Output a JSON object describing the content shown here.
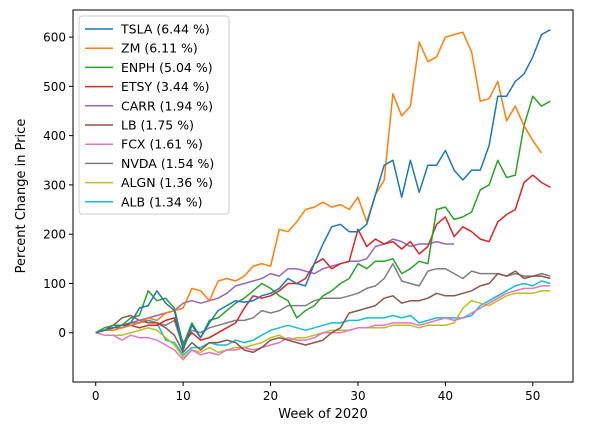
{
  "chart_data": {
    "type": "line",
    "title": "",
    "xlabel": "Week of 2020",
    "ylabel": "Percent Change in Price",
    "xlim": [
      -2.6,
      54.6
    ],
    "ylim": [
      -100,
      655
    ],
    "x_ticks": [
      0,
      10,
      20,
      30,
      40,
      50
    ],
    "y_ticks": [
      0,
      100,
      200,
      300,
      400,
      500,
      600
    ],
    "grid": false,
    "legend_position": "upper-left",
    "series": [
      {
        "name": "TSLA (6.44 %)",
        "color": "#1f77b4",
        "x": [
          0,
          1,
          2,
          3,
          4,
          5,
          6,
          7,
          8,
          9,
          10,
          11,
          12,
          13,
          14,
          15,
          16,
          17,
          18,
          19,
          20,
          21,
          22,
          23,
          24,
          25,
          26,
          27,
          28,
          29,
          30,
          31,
          32,
          33,
          34,
          35,
          36,
          37,
          38,
          39,
          40,
          41,
          42,
          43,
          44,
          45,
          46,
          47,
          48,
          49,
          50,
          51,
          52
        ],
        "y": [
          0,
          5,
          10,
          15,
          20,
          50,
          55,
          85,
          60,
          45,
          -35,
          15,
          -10,
          20,
          45,
          55,
          65,
          62,
          65,
          75,
          80,
          90,
          110,
          100,
          95,
          140,
          180,
          215,
          220,
          205,
          205,
          220,
          280,
          340,
          350,
          275,
          350,
          285,
          340,
          340,
          370,
          330,
          310,
          330,
          330,
          380,
          480,
          480,
          510,
          525,
          560,
          605,
          615
        ]
      },
      {
        "name": "ZM (6.11 %)",
        "color": "#ff7f0e",
        "x": [
          0,
          1,
          2,
          3,
          4,
          5,
          6,
          7,
          8,
          9,
          10,
          11,
          12,
          13,
          14,
          15,
          16,
          17,
          18,
          19,
          20,
          21,
          22,
          23,
          24,
          25,
          26,
          27,
          28,
          29,
          30,
          31,
          32,
          33,
          34,
          35,
          36,
          37,
          38,
          39,
          40,
          41,
          42,
          43,
          44,
          45,
          46,
          47,
          48,
          49,
          50,
          51
        ],
        "y": [
          0,
          5,
          5,
          10,
          15,
          20,
          30,
          25,
          40,
          45,
          50,
          90,
          85,
          65,
          105,
          110,
          105,
          115,
          135,
          140,
          135,
          210,
          205,
          225,
          250,
          255,
          265,
          255,
          260,
          250,
          275,
          225,
          280,
          310,
          485,
          440,
          460,
          590,
          550,
          560,
          600,
          605,
          610,
          570,
          470,
          475,
          510,
          430,
          460,
          420,
          390,
          365
        ]
      },
      {
        "name": "ENPH (5.04 %)",
        "color": "#2ca02c",
        "x": [
          0,
          1,
          2,
          3,
          4,
          5,
          6,
          7,
          8,
          9,
          10,
          11,
          12,
          13,
          14,
          15,
          16,
          17,
          18,
          19,
          20,
          21,
          22,
          23,
          24,
          25,
          26,
          27,
          28,
          29,
          30,
          31,
          32,
          33,
          34,
          35,
          36,
          37,
          38,
          39,
          40,
          41,
          42,
          43,
          44,
          45,
          46,
          47,
          48,
          49,
          50,
          51,
          52
        ],
        "y": [
          0,
          10,
          15,
          15,
          30,
          35,
          85,
          65,
          70,
          50,
          -25,
          20,
          -10,
          25,
          30,
          45,
          60,
          70,
          85,
          100,
          90,
          75,
          65,
          30,
          45,
          55,
          75,
          85,
          100,
          110,
          140,
          130,
          145,
          145,
          150,
          120,
          130,
          145,
          140,
          250,
          255,
          230,
          235,
          245,
          290,
          300,
          350,
          315,
          320,
          420,
          480,
          460,
          470
        ]
      },
      {
        "name": "ETSY (3.44 %)",
        "color": "#d62728",
        "x": [
          0,
          1,
          2,
          3,
          4,
          5,
          6,
          7,
          8,
          9,
          10,
          11,
          12,
          13,
          14,
          15,
          16,
          17,
          18,
          19,
          20,
          21,
          22,
          23,
          24,
          25,
          26,
          27,
          28,
          29,
          30,
          31,
          32,
          33,
          34,
          35,
          36,
          37,
          38,
          39,
          40,
          41,
          42,
          43,
          44,
          45,
          46,
          47,
          48,
          49,
          50,
          51,
          52
        ],
        "y": [
          0,
          5,
          10,
          15,
          15,
          10,
          15,
          15,
          25,
          30,
          -20,
          0,
          -15,
          -10,
          0,
          10,
          20,
          50,
          75,
          70,
          75,
          85,
          100,
          100,
          110,
          140,
          150,
          130,
          140,
          145,
          210,
          175,
          190,
          180,
          185,
          170,
          185,
          160,
          175,
          220,
          235,
          195,
          215,
          205,
          190,
          185,
          225,
          240,
          250,
          305,
          320,
          305,
          295
        ]
      },
      {
        "name": "CARR (1.94 %)",
        "color": "#9467bd",
        "x": [
          0,
          1,
          2,
          3,
          4,
          5,
          6,
          7,
          8,
          9,
          10,
          11,
          12,
          13,
          14,
          15,
          16,
          17,
          18,
          19,
          20,
          21,
          22,
          23,
          24,
          25,
          26,
          27,
          28,
          29,
          30,
          31,
          32,
          33,
          34,
          35,
          36,
          37,
          38,
          39,
          40,
          41
        ],
        "y": [
          0,
          5,
          10,
          15,
          20,
          25,
          30,
          35,
          40,
          45,
          60,
          65,
          60,
          65,
          70,
          80,
          95,
          100,
          105,
          110,
          120,
          115,
          130,
          130,
          125,
          120,
          130,
          135,
          140,
          145,
          145,
          150,
          175,
          180,
          190,
          185,
          175,
          180,
          180,
          185,
          180,
          180
        ]
      },
      {
        "name": "LB (1.75 %)",
        "color": "#8c564b",
        "x": [
          0,
          1,
          2,
          3,
          4,
          5,
          6,
          7,
          8,
          9,
          10,
          11,
          12,
          13,
          14,
          15,
          16,
          17,
          18,
          19,
          20,
          21,
          22,
          23,
          24,
          25,
          26,
          27,
          28,
          29,
          30,
          31,
          32,
          33,
          34,
          35,
          36,
          37,
          38,
          39,
          40,
          41,
          42,
          43,
          44,
          45,
          46,
          47,
          48,
          49,
          50,
          51,
          52
        ],
        "y": [
          0,
          5,
          15,
          30,
          35,
          25,
          20,
          20,
          10,
          -5,
          -40,
          -20,
          -35,
          -20,
          -20,
          -15,
          -20,
          -35,
          -40,
          -30,
          -15,
          -10,
          -15,
          -20,
          -25,
          -20,
          -15,
          0,
          10,
          40,
          45,
          50,
          55,
          70,
          75,
          60,
          65,
          65,
          70,
          80,
          75,
          75,
          80,
          85,
          95,
          100,
          120,
          115,
          125,
          110,
          115,
          115,
          110
        ]
      },
      {
        "name": "FCX (1.61 %)",
        "color": "#e377c2",
        "x": [
          0,
          1,
          2,
          3,
          4,
          5,
          6,
          7,
          8,
          9,
          10,
          11,
          12,
          13,
          14,
          15,
          16,
          17,
          18,
          19,
          20,
          21,
          22,
          23,
          24,
          25,
          26,
          27,
          28,
          29,
          30,
          31,
          32,
          33,
          34,
          35,
          36,
          37,
          38,
          39,
          40,
          41,
          42,
          43,
          44,
          45,
          46,
          47,
          48,
          49,
          50,
          51,
          52
        ],
        "y": [
          0,
          -5,
          -5,
          -15,
          -5,
          -10,
          -10,
          -15,
          -25,
          -35,
          -55,
          -35,
          -45,
          -40,
          -45,
          -35,
          -35,
          -30,
          -35,
          -30,
          -25,
          -20,
          -10,
          -15,
          -15,
          -10,
          0,
          0,
          0,
          5,
          10,
          10,
          15,
          15,
          20,
          20,
          20,
          15,
          20,
          25,
          30,
          25,
          30,
          40,
          50,
          60,
          70,
          80,
          85,
          90,
          90,
          95,
          95
        ]
      },
      {
        "name": "NVDA (1.54 %)",
        "color": "#7f7f7f",
        "x": [
          0,
          1,
          2,
          3,
          4,
          5,
          6,
          7,
          8,
          9,
          10,
          11,
          12,
          13,
          14,
          15,
          16,
          17,
          18,
          19,
          20,
          21,
          22,
          23,
          24,
          25,
          26,
          27,
          28,
          29,
          30,
          31,
          32,
          33,
          34,
          35,
          36,
          37,
          38,
          39,
          40,
          41,
          42,
          43,
          44,
          45,
          46,
          47,
          48,
          49,
          50,
          51,
          52
        ],
        "y": [
          0,
          5,
          10,
          10,
          20,
          20,
          25,
          20,
          15,
          25,
          -30,
          5,
          0,
          10,
          15,
          20,
          25,
          25,
          30,
          45,
          40,
          45,
          55,
          55,
          55,
          65,
          70,
          70,
          70,
          75,
          80,
          90,
          95,
          110,
          140,
          105,
          100,
          95,
          125,
          130,
          130,
          120,
          110,
          125,
          120,
          120,
          120,
          115,
          120,
          115,
          115,
          120,
          115
        ]
      },
      {
        "name": "ALGN (1.36 %)",
        "color": "#bcbd22",
        "x": [
          0,
          1,
          2,
          3,
          4,
          5,
          6,
          7,
          8,
          9,
          10,
          11,
          12,
          13,
          14,
          15,
          16,
          17,
          18,
          19,
          20,
          21,
          22,
          23,
          24,
          25,
          26,
          27,
          28,
          29,
          30,
          31,
          32,
          33,
          34,
          35,
          36,
          37,
          38,
          39,
          40,
          41,
          42,
          43,
          44,
          45,
          46,
          47,
          48,
          49,
          50,
          51,
          52
        ],
        "y": [
          0,
          -5,
          -5,
          -5,
          0,
          5,
          10,
          5,
          -10,
          -25,
          -50,
          -35,
          -40,
          -30,
          -40,
          -35,
          -30,
          -30,
          -25,
          -20,
          -10,
          -5,
          -15,
          -10,
          -10,
          -5,
          0,
          5,
          5,
          5,
          10,
          10,
          10,
          10,
          15,
          15,
          15,
          10,
          15,
          15,
          15,
          20,
          50,
          65,
          60,
          55,
          65,
          75,
          80,
          80,
          80,
          85,
          85
        ]
      },
      {
        "name": "ALB (1.34 %)",
        "color": "#17becf",
        "x": [
          0,
          1,
          2,
          3,
          4,
          5,
          6,
          7,
          8,
          9,
          10,
          11,
          12,
          13,
          14,
          15,
          16,
          17,
          18,
          19,
          20,
          21,
          22,
          23,
          24,
          25,
          26,
          27,
          28,
          29,
          30,
          31,
          32,
          33,
          34,
          35,
          36,
          37,
          38,
          39,
          40,
          41,
          42,
          43,
          44,
          45,
          46,
          47,
          48,
          49,
          50,
          51,
          52
        ],
        "y": [
          0,
          5,
          10,
          10,
          15,
          20,
          25,
          20,
          -15,
          -20,
          -45,
          -30,
          -30,
          -20,
          -25,
          -25,
          -15,
          -20,
          -15,
          -5,
          5,
          10,
          15,
          10,
          5,
          10,
          15,
          20,
          20,
          25,
          25,
          30,
          30,
          30,
          35,
          30,
          35,
          20,
          25,
          30,
          30,
          30,
          30,
          35,
          55,
          65,
          75,
          85,
          95,
          100,
          95,
          105,
          100
        ]
      }
    ]
  }
}
